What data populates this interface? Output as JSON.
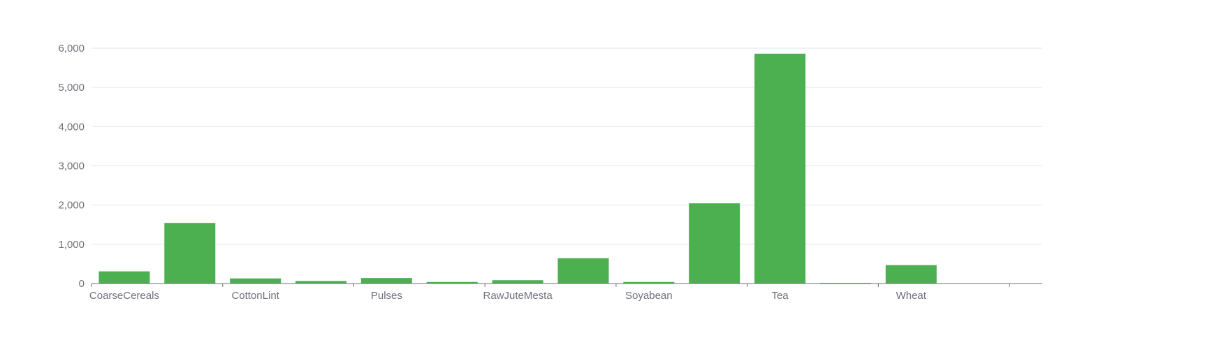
{
  "chart_data": {
    "type": "bar",
    "title": "",
    "xlabel": "",
    "ylabel": "",
    "ylim": [
      0,
      6000
    ],
    "yticks": [
      0,
      1000,
      2000,
      3000,
      4000,
      5000,
      6000
    ],
    "ytick_labels": [
      "0",
      "1,000",
      "2,000",
      "3,000",
      "4,000",
      "5,000",
      "6,000"
    ],
    "categories": [
      "CoarseCereals",
      "CottonLint",
      "Pulses",
      "RawJuteMesta",
      "Soyabean",
      "Tea",
      "Wheat"
    ],
    "bars": [
      {
        "x": 0.0,
        "value": 310
      },
      {
        "x": 0.5,
        "value": 1545
      },
      {
        "x": 1.0,
        "value": 130
      },
      {
        "x": 1.5,
        "value": 65
      },
      {
        "x": 2.0,
        "value": 140
      },
      {
        "x": 2.5,
        "value": 40
      },
      {
        "x": 3.0,
        "value": 85
      },
      {
        "x": 3.5,
        "value": 645
      },
      {
        "x": 4.0,
        "value": 40
      },
      {
        "x": 4.5,
        "value": 2045
      },
      {
        "x": 5.0,
        "value": 5860
      },
      {
        "x": 5.5,
        "value": 10
      },
      {
        "x": 6.0,
        "value": 470
      }
    ],
    "grid": true,
    "legend": "none",
    "bar_color": "#4caf50",
    "grid_color": "#e0e6f1",
    "axis_color": "#6e7079",
    "label_color": "#6e7079"
  }
}
